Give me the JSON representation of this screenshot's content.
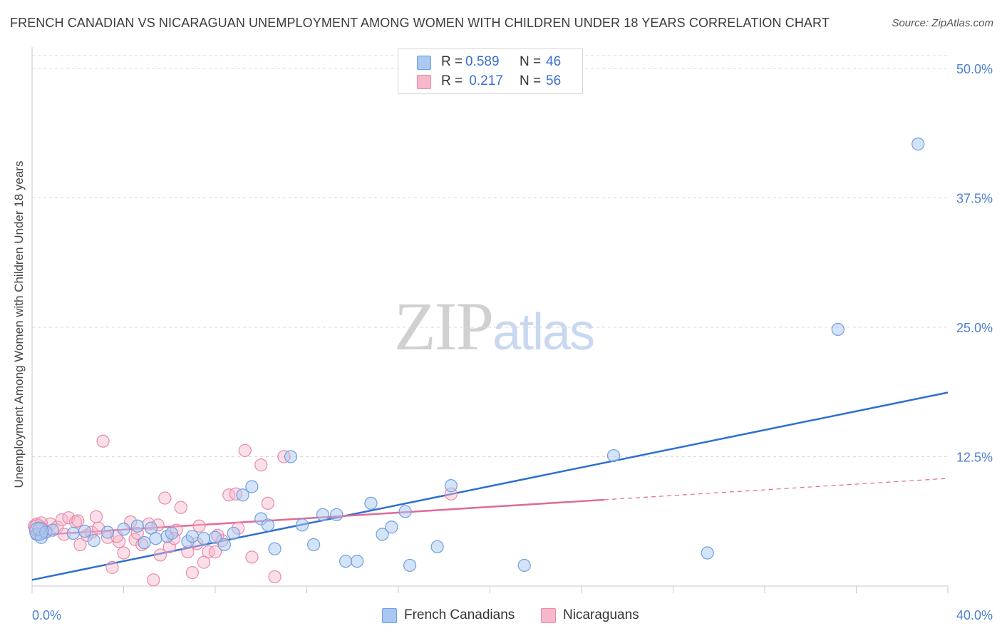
{
  "header": {
    "title": "FRENCH CANADIAN VS NICARAGUAN UNEMPLOYMENT AMONG WOMEN WITH CHILDREN UNDER 18 YEARS CORRELATION CHART",
    "source": "Source: ZipAtlas.com"
  },
  "watermark": {
    "zip": "ZIP",
    "atlas": "atlas"
  },
  "legend": {
    "rows": [
      {
        "r_label": "R =",
        "r_value": "0.589",
        "n_label": "N =",
        "n_value": "46"
      },
      {
        "r_label": "R =",
        "r_value": " 0.217",
        "n_label": "N =",
        "n_value": "56"
      }
    ]
  },
  "bottom_legend": {
    "french": "French Canadians",
    "nicaraguan": "Nicaraguans"
  },
  "colors": {
    "french_fill": "#a9c8f2",
    "french_stroke": "#6f9fde",
    "french_line": "#2f6fd1",
    "nicaraguan_fill": "#f7b8cb",
    "nicaraguan_stroke": "#e98aa8",
    "nicaraguan_line": "#e0699a",
    "grid": "#d9d9d9",
    "tick_text": "#4a7fd0"
  },
  "chart_data": {
    "type": "scatter",
    "title": "FRENCH CANADIAN VS NICARAGUAN UNEMPLOYMENT AMONG WOMEN WITH CHILDREN UNDER 18 YEARS CORRELATION CHART",
    "xlabel": "",
    "ylabel": "Unemployment Among Women with Children Under 18 years",
    "xlim": [
      0,
      40
    ],
    "ylim": [
      0,
      50
    ],
    "x_tick_labels": [
      "0.0%",
      "40.0%"
    ],
    "y_ticks": [
      12.5,
      25.0,
      37.5,
      50.0
    ],
    "y_tick_labels": [
      "12.5%",
      "25.0%",
      "37.5%",
      "50.0%"
    ],
    "grid": true,
    "legend_position": "top-center",
    "series": [
      {
        "name": "French Canadians",
        "r": 0.589,
        "n": 46,
        "trend": {
          "x": [
            0,
            40
          ],
          "y": [
            0.6,
            18.7
          ],
          "dashed_from": null
        },
        "points": [
          [
            0.2,
            5.0
          ],
          [
            0.4,
            4.7
          ],
          [
            0.3,
            5.5
          ],
          [
            0.6,
            5.2
          ],
          [
            1.8,
            5.1
          ],
          [
            2.3,
            5.3
          ],
          [
            2.7,
            4.4
          ],
          [
            3.3,
            5.2
          ],
          [
            4.0,
            5.5
          ],
          [
            4.6,
            5.8
          ],
          [
            5.2,
            5.6
          ],
          [
            5.4,
            4.6
          ],
          [
            5.9,
            4.8
          ],
          [
            6.1,
            5.1
          ],
          [
            6.8,
            4.3
          ],
          [
            7.0,
            4.8
          ],
          [
            7.5,
            4.6
          ],
          [
            8.0,
            4.7
          ],
          [
            8.4,
            4.0
          ],
          [
            8.8,
            5.1
          ],
          [
            9.2,
            8.8
          ],
          [
            9.6,
            9.6
          ],
          [
            10.0,
            6.5
          ],
          [
            10.3,
            5.9
          ],
          [
            10.6,
            3.6
          ],
          [
            11.3,
            12.5
          ],
          [
            11.8,
            5.9
          ],
          [
            12.3,
            4.0
          ],
          [
            12.7,
            6.9
          ],
          [
            13.3,
            6.9
          ],
          [
            13.7,
            2.4
          ],
          [
            14.2,
            2.4
          ],
          [
            14.8,
            8.0
          ],
          [
            15.3,
            5.0
          ],
          [
            15.7,
            5.7
          ],
          [
            16.3,
            7.2
          ],
          [
            16.5,
            2.0
          ],
          [
            17.7,
            3.8
          ],
          [
            18.3,
            9.7
          ],
          [
            21.5,
            2.0
          ],
          [
            29.5,
            3.2
          ],
          [
            25.4,
            12.6
          ],
          [
            35.2,
            24.8
          ],
          [
            38.7,
            42.7
          ],
          [
            0.9,
            5.4
          ],
          [
            4.9,
            4.2
          ]
        ]
      },
      {
        "name": "Nicaraguans",
        "r": 0.217,
        "n": 56,
        "trend": {
          "x": [
            0,
            40
          ],
          "y": [
            4.9,
            10.4
          ],
          "solid_to_x": 25.0
        },
        "points": [
          [
            0.1,
            5.8
          ],
          [
            0.3,
            5.1
          ],
          [
            0.5,
            5.5
          ],
          [
            0.8,
            6.0
          ],
          [
            1.1,
            5.7
          ],
          [
            1.3,
            6.4
          ],
          [
            1.6,
            6.6
          ],
          [
            1.9,
            6.2
          ],
          [
            2.1,
            4.0
          ],
          [
            2.4,
            4.9
          ],
          [
            2.6,
            5.2
          ],
          [
            2.8,
            6.7
          ],
          [
            3.1,
            14.0
          ],
          [
            3.3,
            4.7
          ],
          [
            3.5,
            1.8
          ],
          [
            3.8,
            4.3
          ],
          [
            4.0,
            3.2
          ],
          [
            4.3,
            6.2
          ],
          [
            4.5,
            4.5
          ],
          [
            4.8,
            4.0
          ],
          [
            5.1,
            6.0
          ],
          [
            5.3,
            0.6
          ],
          [
            5.6,
            3.0
          ],
          [
            5.8,
            8.5
          ],
          [
            6.0,
            3.8
          ],
          [
            6.3,
            5.4
          ],
          [
            6.5,
            7.6
          ],
          [
            6.8,
            3.3
          ],
          [
            7.0,
            1.3
          ],
          [
            7.2,
            4.1
          ],
          [
            7.5,
            2.3
          ],
          [
            7.7,
            3.3
          ],
          [
            8.0,
            3.3
          ],
          [
            8.3,
            4.4
          ],
          [
            8.6,
            8.8
          ],
          [
            8.9,
            8.9
          ],
          [
            9.3,
            13.1
          ],
          [
            9.6,
            2.8
          ],
          [
            10.0,
            11.7
          ],
          [
            10.3,
            8.0
          ],
          [
            10.6,
            0.9
          ],
          [
            11.0,
            12.5
          ],
          [
            0.2,
            6.0
          ],
          [
            0.6,
            5.3
          ],
          [
            1.4,
            5.0
          ],
          [
            2.0,
            6.3
          ],
          [
            2.9,
            5.6
          ],
          [
            3.7,
            4.8
          ],
          [
            4.6,
            5.1
          ],
          [
            5.5,
            5.9
          ],
          [
            6.2,
            4.6
          ],
          [
            7.3,
            5.8
          ],
          [
            8.1,
            4.9
          ],
          [
            9.0,
            5.6
          ],
          [
            18.3,
            8.9
          ],
          [
            0.4,
            6.1
          ]
        ]
      }
    ]
  }
}
